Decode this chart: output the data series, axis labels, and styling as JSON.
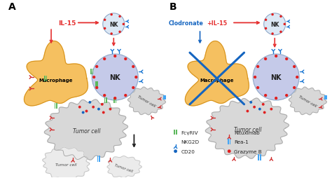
{
  "panel_A_label": "A",
  "panel_B_label": "B",
  "il15_label": "IL-15",
  "clodronate_label_blue": "Clodronate",
  "clodronate_label_red": "+IL-15",
  "nk_label": "NK",
  "macrophage_label": "Macrophage",
  "tumor_cell_label": "Tumor cell",
  "bg_color": "#ffffff",
  "nk_fill_small": "#dce8f5",
  "nk_fill_large": "#c5cae9",
  "nk_stroke": "#8fa8c8",
  "macrophage_fill_center": "#f5c060",
  "macrophage_fill_edge": "#f0a830",
  "macrophage_stroke": "#d4901a",
  "tumor_fill": "#d8d8d8",
  "tumor_fill_dead": "#ebebeb",
  "tumor_stroke": "#b0b0b0",
  "arrow_red": "#e53030",
  "arrow_blue": "#1565c0",
  "arrow_black": "#222222",
  "green_bar": "#5cb85c",
  "blue_bar": "#42a5f5",
  "red_Y": "#d03030",
  "blue_Y": "#1976d2",
  "dot_red": "#e02020",
  "dot_blue": "#1565c0",
  "cross_blue": "#1565c0",
  "legend_green": "#5cb85c",
  "legend_blue_bar": "#42a5f5",
  "legend_red_Y": "#d03030",
  "legend_blue_Y": "#1976d2",
  "legend_dot_blue": "#1565c0",
  "legend_dot_red": "#e02020"
}
